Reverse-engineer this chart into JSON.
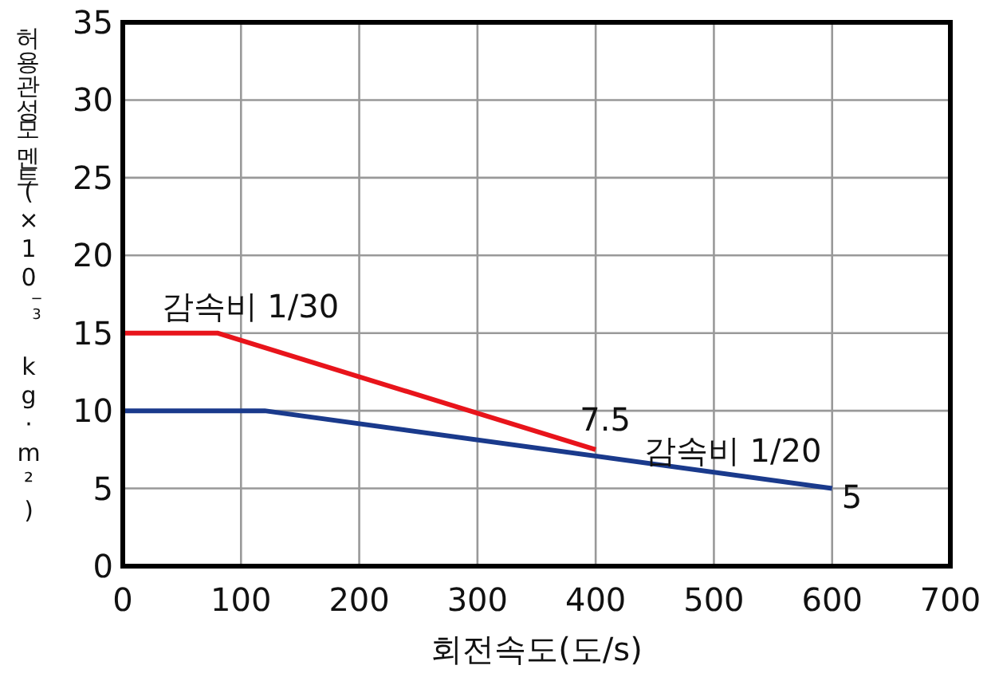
{
  "chart_data": {
    "type": "line",
    "xlabel": "회전속도(도/s)",
    "ylabel": "허용관성모멘트(×10$^{−3}$ kg·m²)",
    "series": [
      {
        "name": "감속비 1/30",
        "color": "#e8141b",
        "x": [
          0,
          80,
          400
        ],
        "values": [
          15,
          15,
          7.5
        ],
        "value_labels": [
          null,
          null,
          "7.5"
        ]
      },
      {
        "name": "감속비 1/20",
        "color": "#1a3a8c",
        "x": [
          0,
          120,
          600
        ],
        "values": [
          10,
          10,
          5
        ],
        "value_labels": [
          null,
          null,
          "5"
        ]
      }
    ],
    "xlim": [
      0,
      700
    ],
    "xticks": [
      0,
      100,
      200,
      300,
      400,
      500,
      600,
      700
    ],
    "ylim": [
      0,
      35
    ],
    "yticks": [
      0,
      5,
      10,
      15,
      20,
      25,
      30,
      35
    ],
    "grid": true,
    "marker": "none",
    "line_style": "solid"
  }
}
